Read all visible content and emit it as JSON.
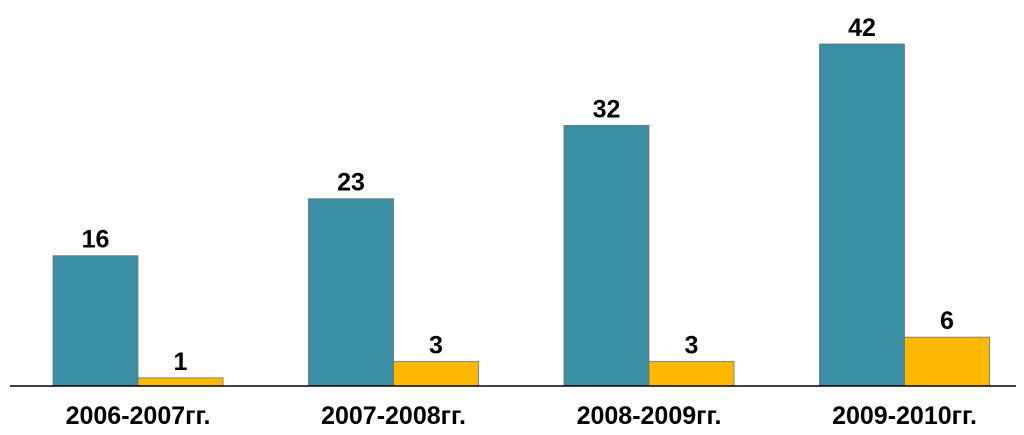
{
  "chart_data": {
    "type": "bar",
    "categories": [
      "2006-2007гг.",
      "2007-2008гг.",
      "2008-2009гг.",
      "2009-2010гг."
    ],
    "series": [
      {
        "values": [
          16,
          23,
          32,
          42
        ],
        "color": "#3a8fa5"
      },
      {
        "values": [
          1,
          3,
          3,
          6
        ],
        "color": "#ffb800"
      }
    ],
    "title": "",
    "xlabel": "",
    "ylabel": "",
    "ylim": [
      0,
      42
    ],
    "grid": false,
    "legend": "none",
    "data_labels": true
  }
}
